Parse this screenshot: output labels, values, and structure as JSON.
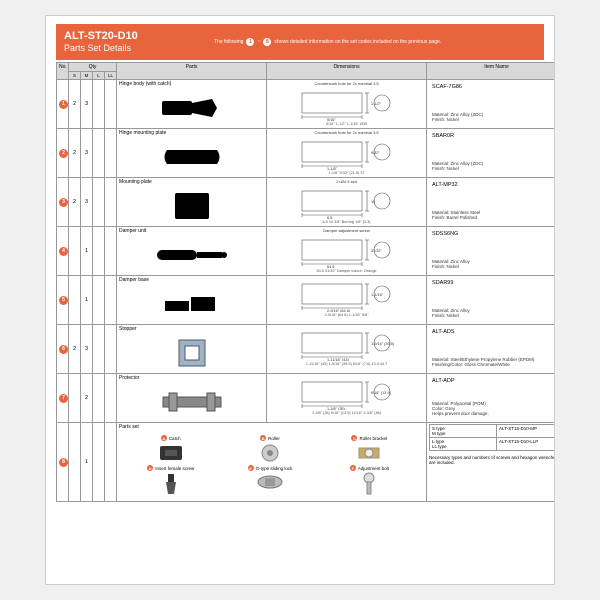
{
  "header": {
    "title": "ALT-ST20-D10",
    "subtitle": "Parts Set Details",
    "note_prefix": "The following",
    "note_suffix": "shows detailed information on the set codes included on the previous page."
  },
  "columns": {
    "no": "No.",
    "qty": "Qty",
    "q_s": "S",
    "q_m": "M",
    "q_l": "L",
    "q_ll": "LL",
    "parts": "Parts",
    "dimensions": "Dimensions",
    "item_name": "Item Name"
  },
  "rows": [
    {
      "n": "1",
      "qty": {
        "s": "2",
        "m": "3",
        "l": "",
        "ll": ""
      },
      "part_label": "Hinge body (with catch)",
      "dim_note": "Countersunk hole for 2x nominal 3.5",
      "dim_vals": "5/16\"  1-1/2\"  1-1/16\"  Ø35",
      "name": "SCAF-7G86",
      "mat": "Material: Zinc Alloy (ZDC)\nFinish: Nickel"
    },
    {
      "n": "2",
      "qty": {
        "s": "2",
        "m": "3",
        "l": "",
        "ll": ""
      },
      "part_label": "Hinge mounting plate",
      "dim_note": "Countersunk hole for 2x nominal 3.5",
      "dim_vals": "1-1/8\"  9/32\"  (21.5)  37",
      "name": "SBAR0R",
      "mat": "Material: Zinc Alloy (ZDC)\nFinish: Nickel"
    },
    {
      "n": "3",
      "qty": {
        "s": "2",
        "m": "3",
        "l": "",
        "ll": ""
      },
      "part_label": "Mounting plate",
      "dim_note": "2×Ø4.5 slot",
      "dim_vals": "6.5  10  3/8\"  Burring  1/8\" (3.3)",
      "name": "ALT-MP32",
      "mat": "Material: Stainless Steel\nFinish: Barrel Polished"
    },
    {
      "n": "4",
      "qty": {
        "s": "",
        "m": "1",
        "l": "",
        "ll": ""
      },
      "part_label": "Damper unit",
      "dim_note": "Damper adjustment screw",
      "dim_vals": "64.5  31/32\"  Damper colour: Orange",
      "name": "SDSS6NG",
      "mat": "Material: Zinc Alloy\nFinish: Nickel"
    },
    {
      "n": "5",
      "qty": {
        "s": "",
        "m": "1",
        "l": "",
        "ll": ""
      },
      "part_label": "Damper base",
      "dim_note": "",
      "dim_vals": "2-9/16\" (64.6)  1-1/16\"  5/8\"",
      "name": "SDAR99",
      "mat": "Material: Zinc Alloy\nFinish: Nickel"
    },
    {
      "n": "6",
      "qty": {
        "s": "2",
        "m": "3",
        "l": "",
        "ll": ""
      },
      "part_label": "Stopper",
      "dim_note": "",
      "dim_vals": "1-11/16\" (43)  1-9/16\" (39.5)  5/16\" (7.6)  13.9  44.7",
      "name": "ALT-ADS",
      "mat": "Material: Steel/Ethylene Propylene Rubber (EPDM)\nFinishing/Color: Gloss Chromate/White"
    },
    {
      "n": "7",
      "qty": {
        "s": "",
        "m": "2",
        "l": "",
        "ll": ""
      },
      "part_label": "Protector",
      "dim_note": "",
      "dim_vals": "1-3/8\" (35)  9/16\" (13.9)  11/16\"  3-3/8\" (86)",
      "name": "ALT-ADP",
      "mat": "Material: Polyacetal (POM)\nColor: Grey\nHelps prevent door damage."
    }
  ],
  "parts_set": {
    "n": "8",
    "qty": {
      "s": "",
      "m": "1",
      "l": "",
      "ll": ""
    },
    "label": "Parts set",
    "items": [
      {
        "k": "A",
        "t": "Catch"
      },
      {
        "k": "B",
        "t": "Roller"
      },
      {
        "k": "C",
        "t": "Roller bracket"
      },
      {
        "k": "D",
        "t": "Insert female screw"
      },
      {
        "k": "E",
        "t": "G-type sliding lock"
      },
      {
        "k": "F",
        "t": "Adjustment bolt"
      }
    ],
    "types": [
      {
        "l1": "S type",
        "l2": "M type",
        "code": "ALT-ST15-D10-MP"
      },
      {
        "l1": "L type",
        "l2": "LL type",
        "code": "ALT-ST15-D10-LLP"
      }
    ],
    "note": "Necessary types and numbers of screws and hexagon wrenches are included."
  }
}
